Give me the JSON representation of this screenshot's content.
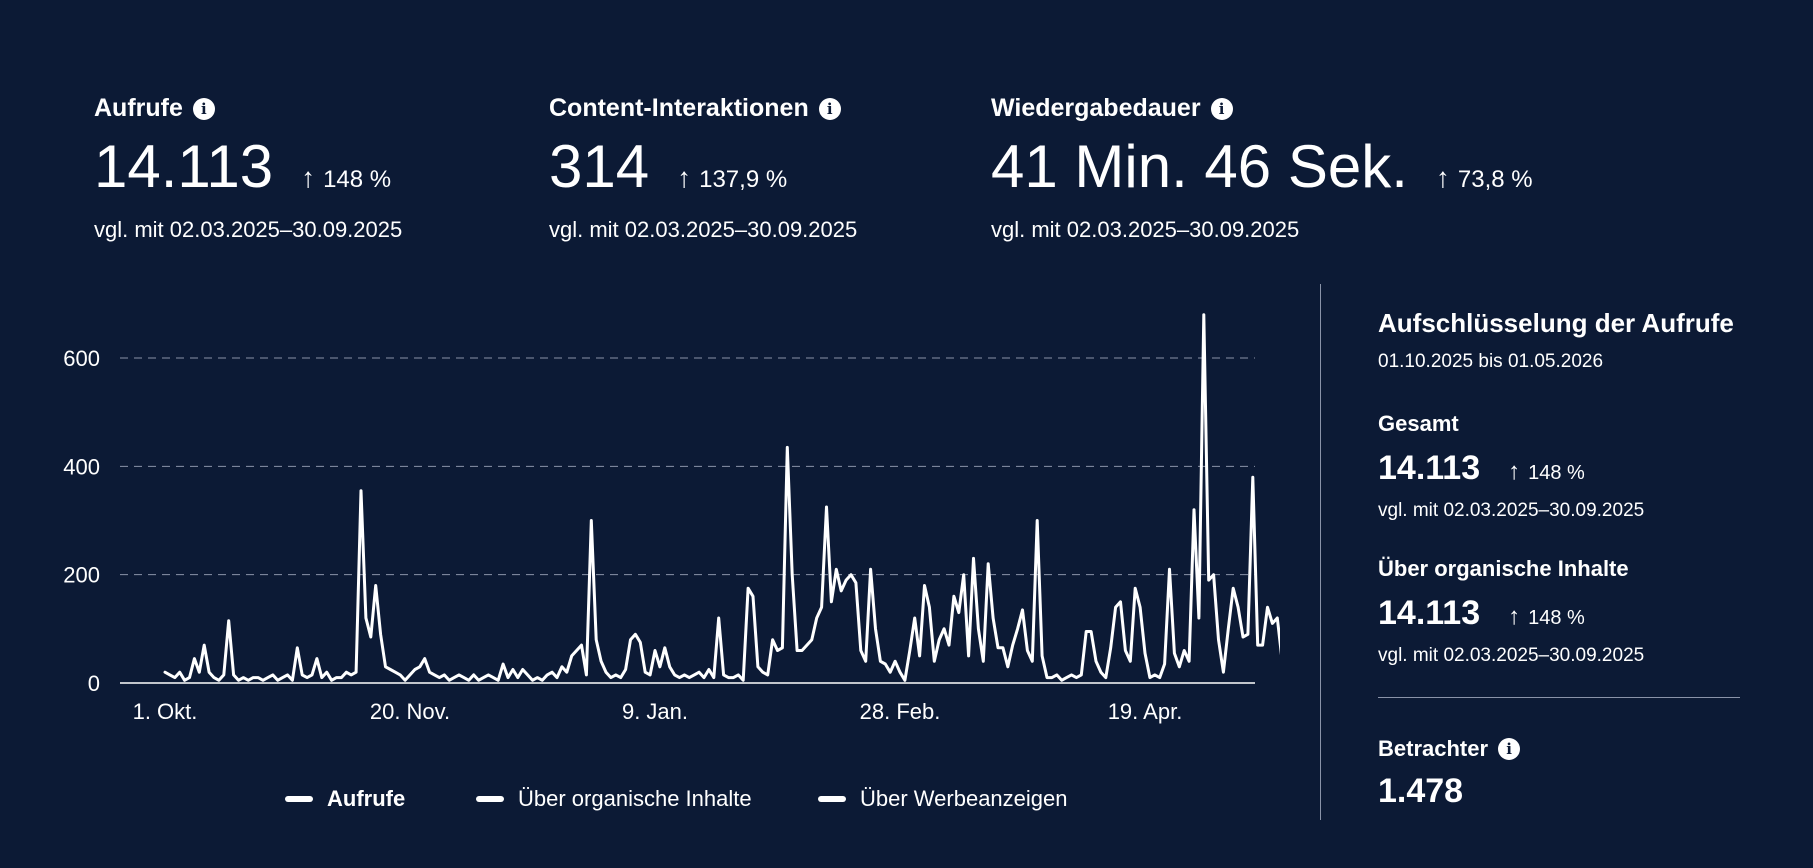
{
  "metrics": [
    {
      "label": "Aufrufe",
      "value": "14.113",
      "change": "148 %",
      "compare": "vgl. mit 02.03.2025–30.09.2025"
    },
    {
      "label": "Content-Interaktionen",
      "value": "314",
      "change": "137,9 %",
      "compare": "vgl. mit 02.03.2025–30.09.2025"
    },
    {
      "label": "Wiedergabedauer",
      "value": "41 Min. 46 Sek.",
      "change": "73,8 %",
      "compare": "vgl. mit 02.03.2025–30.09.2025"
    }
  ],
  "icons": {
    "info": "info-icon",
    "arrow": "arrow-up-icon",
    "info_glyph": "i",
    "arrow_glyph": "↑"
  },
  "legend": [
    "Aufrufe",
    "Über organische Inhalte",
    "Über Werbeanzeigen"
  ],
  "side": {
    "title": "Aufschlüsselung der Aufrufe",
    "range": "01.10.2025 bis 01.05.2026",
    "total_label": "Gesamt",
    "total_value": "14.113",
    "total_change": "148 %",
    "total_compare": "vgl. mit 02.03.2025–30.09.2025",
    "organic_label": "Über organische Inhalte",
    "organic_value": "14.113",
    "organic_change": "148 %",
    "organic_compare": "vgl. mit 02.03.2025–30.09.2025",
    "viewers_label": "Betrachter",
    "viewers_value": "1.478"
  },
  "colors": {
    "background": "#0c1a35",
    "line": "#ffffff",
    "grid": "#8a93a8"
  },
  "chart_data": {
    "type": "line",
    "x_start": "2025-10-01",
    "xticks": [
      {
        "label": "1. Okt.",
        "day": 0
      },
      {
        "label": "20. Nov.",
        "day": 50
      },
      {
        "label": "9. Jan.",
        "day": 100
      },
      {
        "label": "28. Feb.",
        "day": 150
      },
      {
        "label": "19. Apr.",
        "day": 200
      }
    ],
    "yticks": [
      0,
      200,
      400,
      600
    ],
    "ylim": [
      0,
      700
    ],
    "grid": "dashed-horizontal",
    "series": [
      {
        "name": "Aufrufe",
        "values": [
          20,
          15,
          10,
          20,
          5,
          10,
          45,
          20,
          70,
          20,
          10,
          5,
          15,
          115,
          15,
          5,
          10,
          5,
          10,
          10,
          5,
          10,
          15,
          5,
          10,
          15,
          5,
          65,
          15,
          10,
          15,
          45,
          10,
          20,
          5,
          10,
          10,
          20,
          15,
          20,
          355,
          120,
          85,
          180,
          90,
          30,
          25,
          20,
          15,
          5,
          15,
          25,
          30,
          45,
          20,
          15,
          10,
          15,
          5,
          10,
          15,
          10,
          5,
          15,
          5,
          10,
          15,
          10,
          5,
          35,
          10,
          25,
          10,
          25,
          15,
          5,
          10,
          5,
          15,
          20,
          10,
          30,
          20,
          50,
          60,
          70,
          15,
          300,
          80,
          40,
          20,
          10,
          15,
          10,
          25,
          80,
          90,
          75,
          20,
          15,
          60,
          30,
          65,
          30,
          15,
          10,
          15,
          10,
          15,
          20,
          10,
          25,
          10,
          120,
          15,
          10,
          10,
          15,
          5,
          175,
          160,
          30,
          20,
          15,
          80,
          60,
          65,
          435,
          200,
          60,
          60,
          70,
          80,
          120,
          140,
          325,
          150,
          210,
          170,
          190,
          200,
          185,
          60,
          40,
          210,
          100,
          40,
          35,
          20,
          40,
          20,
          5,
          60,
          120,
          50,
          180,
          140,
          40,
          80,
          100,
          70,
          160,
          130,
          200,
          50,
          230,
          100,
          40,
          220,
          120,
          65,
          65,
          30,
          70,
          100,
          135,
          60,
          40,
          300,
          50,
          10,
          10,
          15,
          5,
          10,
          15,
          10,
          15,
          95,
          95,
          40,
          20,
          10,
          65,
          140,
          150,
          60,
          40,
          175,
          140,
          55,
          10,
          15,
          10,
          35,
          210,
          55,
          30,
          60,
          40,
          320,
          120,
          680,
          190,
          200,
          80,
          20,
          100,
          175,
          140,
          85,
          90,
          380,
          70,
          70,
          140,
          110,
          120,
          40,
          100,
          55
        ]
      }
    ]
  }
}
